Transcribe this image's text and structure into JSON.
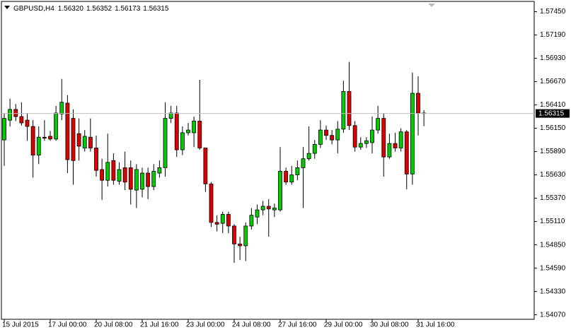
{
  "chart_data": {
    "type": "candlestick",
    "header": {
      "symbol": "GBPUSD,H4",
      "quote": [
        "1.56320",
        "1.56352",
        "1.56173",
        "1.56315"
      ]
    },
    "categories": [
      "15 Jul 2015",
      null,
      null,
      null,
      null,
      null,
      null,
      null,
      "17 Jul 00:00",
      null,
      null,
      null,
      null,
      null,
      null,
      null,
      "20 Jul 08:00",
      null,
      null,
      null,
      null,
      null,
      null,
      null,
      "21 Jul 16:00",
      null,
      null,
      null,
      null,
      null,
      null,
      null,
      "23 Jul 00:00",
      null,
      null,
      null,
      null,
      null,
      null,
      null,
      "24 Jul 08:00",
      null,
      null,
      null,
      null,
      null,
      null,
      null,
      "27 Jul 16:00",
      null,
      null,
      null,
      null,
      null,
      null,
      null,
      "29 Jul 00:00",
      null,
      null,
      null,
      null,
      null,
      null,
      null,
      "30 Jul 08:00",
      null,
      null,
      null,
      null,
      null,
      null,
      null,
      "31 Jul 16:00",
      null
    ],
    "open": [
      1.5602,
      1.5624,
      1.5636,
      1.5628,
      1.5624,
      1.5617,
      1.5585,
      1.5605,
      1.5606,
      1.5603,
      1.5631,
      1.5643,
      1.5626,
      1.5609,
      1.5593,
      1.5605,
      1.5593,
      1.5569,
      1.5557,
      1.5579,
      1.5556,
      1.5571,
      1.5571,
      1.5546,
      1.5547,
      1.5565,
      1.555,
      1.5565,
      1.5571,
      1.5626,
      1.5632,
      1.5591,
      1.561,
      1.561,
      1.5623,
      1.5593,
      1.5553,
      1.551,
      1.5509,
      1.5519,
      1.5506,
      1.5486,
      1.5484,
      1.5506,
      1.5516,
      1.5524,
      1.5528,
      1.5524,
      1.5524,
      1.5567,
      1.5555,
      1.5563,
      1.5571,
      1.5581,
      1.5587,
      1.5597,
      1.5613,
      1.5607,
      1.5602,
      1.5614,
      1.5656,
      1.5618,
      1.5594,
      1.5598,
      1.5599,
      1.5613,
      1.5626,
      1.5583,
      1.5598,
      1.5593,
      1.5611,
      1.5564,
      1.5654,
      1.5632
    ],
    "high": [
      1.5632,
      1.5648,
      1.5642,
      1.5644,
      1.5632,
      1.5624,
      1.5617,
      1.5624,
      1.5612,
      1.564,
      1.567,
      1.5652,
      1.5636,
      1.5626,
      1.5613,
      1.5626,
      1.5607,
      1.5581,
      1.5609,
      1.5587,
      1.5577,
      1.5589,
      1.5579,
      1.5575,
      1.5571,
      1.5571,
      1.5575,
      1.5579,
      1.5644,
      1.564,
      1.564,
      1.5617,
      1.5621,
      1.5628,
      1.5669,
      1.5593,
      1.5555,
      1.5518,
      1.5522,
      1.5522,
      1.5508,
      1.5494,
      1.551,
      1.5526,
      1.553,
      1.5534,
      1.5536,
      1.5531,
      1.5594,
      1.5571,
      1.5573,
      1.5579,
      1.5594,
      1.5617,
      1.5602,
      1.5624,
      1.5618,
      1.5613,
      1.5623,
      1.5668,
      1.5689,
      1.5623,
      1.5605,
      1.5605,
      1.5628,
      1.564,
      1.5632,
      1.5609,
      1.561,
      1.5615,
      1.5613,
      1.5677,
      1.5673,
      1.56352
    ],
    "low": [
      1.5573,
      1.5617,
      1.5623,
      1.5618,
      1.5601,
      1.556,
      1.5575,
      1.5601,
      1.5601,
      1.5601,
      1.5624,
      1.5565,
      1.5552,
      1.5579,
      1.5589,
      1.5589,
      1.5561,
      1.5535,
      1.555,
      1.5552,
      1.5552,
      1.5546,
      1.553,
      1.5526,
      1.5538,
      1.5536,
      1.5546,
      1.556,
      1.5561,
      1.5621,
      1.5583,
      1.5585,
      1.5607,
      1.5594,
      1.5591,
      1.5544,
      1.5505,
      1.55,
      1.5498,
      1.5498,
      1.5465,
      1.5468,
      1.5467,
      1.5502,
      1.5508,
      1.5518,
      1.5494,
      1.5516,
      1.5522,
      1.5552,
      1.5552,
      1.5557,
      1.5526,
      1.5579,
      1.5581,
      1.5593,
      1.5602,
      1.5597,
      1.5587,
      1.561,
      1.5613,
      1.5589,
      1.5591,
      1.5593,
      1.5587,
      1.5609,
      1.5561,
      1.5581,
      1.5589,
      1.5589,
      1.5547,
      1.5552,
      1.5607,
      1.56173
    ],
    "close": [
      1.5626,
      1.5636,
      1.5628,
      1.5621,
      1.5617,
      1.5585,
      1.5605,
      1.5604,
      1.5603,
      1.5632,
      1.5644,
      1.558,
      1.5579,
      1.5595,
      1.5606,
      1.5593,
      1.5568,
      1.5557,
      1.5577,
      1.5557,
      1.5569,
      1.5555,
      1.5547,
      1.5569,
      1.5565,
      1.555,
      1.5567,
      1.5571,
      1.5626,
      1.5632,
      1.5591,
      1.561,
      1.5613,
      1.5623,
      1.5593,
      1.5553,
      1.551,
      1.5508,
      1.5519,
      1.5506,
      1.5486,
      1.5484,
      1.5506,
      1.5518,
      1.5524,
      1.5528,
      1.5525,
      1.5526,
      1.5567,
      1.5555,
      1.5563,
      1.5571,
      1.5581,
      1.5587,
      1.5597,
      1.5613,
      1.5607,
      1.5602,
      1.5614,
      1.5656,
      1.5618,
      1.5594,
      1.5598,
      1.5601,
      1.5613,
      1.5626,
      1.5583,
      1.5598,
      1.5593,
      1.5611,
      1.5564,
      1.5654,
      1.5632,
      1.56315
    ],
    "up_color": "#00cc00",
    "down_color": "#dd0000",
    "ylim": [
      1.5402,
      1.5758
    ],
    "yticks": [
      {
        "value": 1.5745,
        "label": "1.57450"
      },
      {
        "value": 1.5719,
        "label": "1.57190"
      },
      {
        "value": 1.5693,
        "label": "1.56930"
      },
      {
        "value": 1.5667,
        "label": "1.56670"
      },
      {
        "value": 1.5641,
        "label": "1.56410"
      },
      {
        "value": 1.5615,
        "label": "1.56150"
      },
      {
        "value": 1.5589,
        "label": "1.55890"
      },
      {
        "value": 1.5563,
        "label": "1.55630"
      },
      {
        "value": 1.5537,
        "label": "1.55370"
      },
      {
        "value": 1.5511,
        "label": "1.55110"
      },
      {
        "value": 1.5485,
        "label": "1.54850"
      },
      {
        "value": 1.5459,
        "label": "1.54590"
      },
      {
        "value": 1.5433,
        "label": "1.54330"
      },
      {
        "value": 1.5407,
        "label": "1.54070"
      }
    ],
    "current_price": {
      "value": 1.56315,
      "label": "1.56315"
    }
  }
}
